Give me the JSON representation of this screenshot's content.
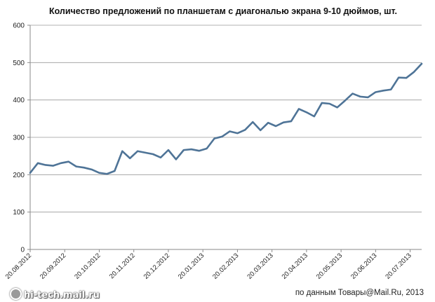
{
  "chart_data": {
    "type": "line",
    "title": "Количество предложений по планшетам с диагональю экрана 9-10 дюймов, шт.",
    "xlabel": "",
    "ylabel": "",
    "ylim": [
      0,
      600
    ],
    "yticks": [
      "0",
      "100",
      "200",
      "300",
      "400",
      "500",
      "600"
    ],
    "grid": true,
    "x_tick_labels": [
      "20.08.2012",
      "20.09.2012",
      "20.10.2012",
      "20.11.2012",
      "20.12.2012",
      "20.01.2013",
      "20.02.2013",
      "20.03.2013",
      "20.04.2013",
      "20.05.2013",
      "20.06.2013",
      "20.07.2013"
    ],
    "points_per_tick": 4.5,
    "series": [
      {
        "color": "#4f7497",
        "values": [
          205,
          231,
          226,
          224,
          231,
          235,
          222,
          219,
          214,
          205,
          202,
          210,
          263,
          244,
          263,
          259,
          255,
          246,
          266,
          241,
          266,
          268,
          264,
          270,
          297,
          302,
          316,
          311,
          320,
          341,
          319,
          339,
          330,
          340,
          343,
          376,
          367,
          356,
          392,
          390,
          380,
          398,
          417,
          409,
          407,
          421,
          425,
          428,
          460,
          459,
          475,
          497
        ]
      }
    ]
  },
  "footer": {
    "watermark": "hi-tech.mail.ru",
    "source": "по данным Товары@Mail.Ru, 2013"
  }
}
